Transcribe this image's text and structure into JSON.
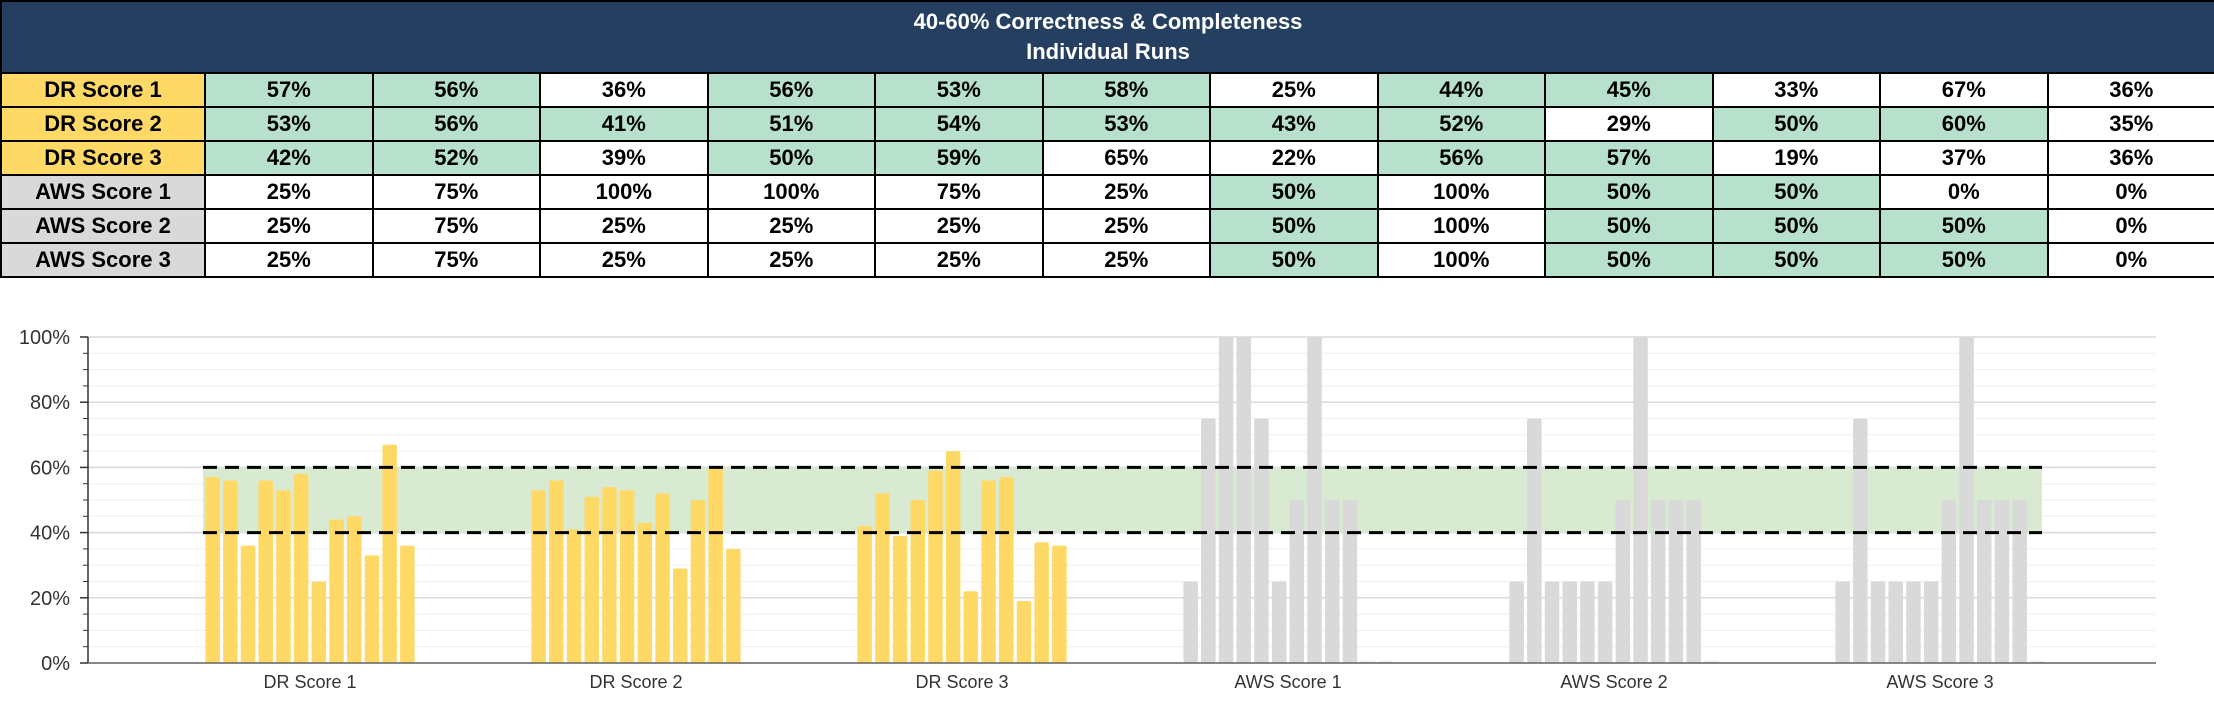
{
  "table": {
    "title_line1": "40-60% Correctness & Completeness",
    "title_line2": "Individual Runs",
    "rows": [
      {
        "label": "DR Score 1",
        "group": "dr",
        "values": [
          "57%",
          "56%",
          "36%",
          "56%",
          "53%",
          "58%",
          "25%",
          "44%",
          "45%",
          "33%",
          "67%",
          "36%"
        ]
      },
      {
        "label": "DR Score 2",
        "group": "dr",
        "values": [
          "53%",
          "56%",
          "41%",
          "51%",
          "54%",
          "53%",
          "43%",
          "52%",
          "29%",
          "50%",
          "60%",
          "35%"
        ]
      },
      {
        "label": "DR Score 3",
        "group": "dr",
        "values": [
          "42%",
          "52%",
          "39%",
          "50%",
          "59%",
          "65%",
          "22%",
          "56%",
          "57%",
          "19%",
          "37%",
          "36%"
        ]
      },
      {
        "label": "AWS Score 1",
        "group": "aws",
        "values": [
          "25%",
          "75%",
          "100%",
          "100%",
          "75%",
          "25%",
          "50%",
          "100%",
          "50%",
          "50%",
          "0%",
          "0%"
        ]
      },
      {
        "label": "AWS Score 2",
        "group": "aws",
        "values": [
          "25%",
          "75%",
          "25%",
          "25%",
          "25%",
          "25%",
          "50%",
          "100%",
          "50%",
          "50%",
          "50%",
          "0%"
        ]
      },
      {
        "label": "AWS Score 3",
        "group": "aws",
        "values": [
          "25%",
          "75%",
          "25%",
          "25%",
          "25%",
          "25%",
          "50%",
          "100%",
          "50%",
          "50%",
          "50%",
          "0%"
        ]
      }
    ]
  },
  "colors": {
    "header_bg": "#243f5f",
    "dr_label_bg": "#ffd966",
    "aws_label_bg": "#d9d9d9",
    "in_band_cell": "#b7e1cd",
    "dr_bar": "#ffd966",
    "aws_bar": "#d9d9d9",
    "band_fill": "#d9ead3",
    "band_line": "#000000"
  },
  "chart_data": {
    "type": "bar",
    "categories": [
      "DR Score 1",
      "DR Score 2",
      "DR Score 3",
      "AWS Score 1",
      "AWS Score 2",
      "AWS Score 3"
    ],
    "series_values": [
      [
        57,
        56,
        36,
        56,
        53,
        58,
        25,
        44,
        45,
        33,
        67,
        36
      ],
      [
        53,
        56,
        41,
        51,
        54,
        53,
        43,
        52,
        29,
        50,
        60,
        35
      ],
      [
        42,
        52,
        39,
        50,
        59,
        65,
        22,
        56,
        57,
        19,
        37,
        36
      ],
      [
        25,
        75,
        100,
        100,
        75,
        25,
        50,
        100,
        50,
        50,
        0,
        0
      ],
      [
        25,
        75,
        25,
        25,
        25,
        25,
        50,
        100,
        50,
        50,
        50,
        0
      ],
      [
        25,
        75,
        25,
        25,
        25,
        25,
        50,
        100,
        50,
        50,
        50,
        0
      ]
    ],
    "y_ticks": [
      "0%",
      "20%",
      "40%",
      "60%",
      "80%",
      "100%"
    ],
    "ylim": [
      0,
      100
    ],
    "band": [
      40,
      60
    ],
    "title": "",
    "xlabel": "",
    "ylabel": ""
  }
}
